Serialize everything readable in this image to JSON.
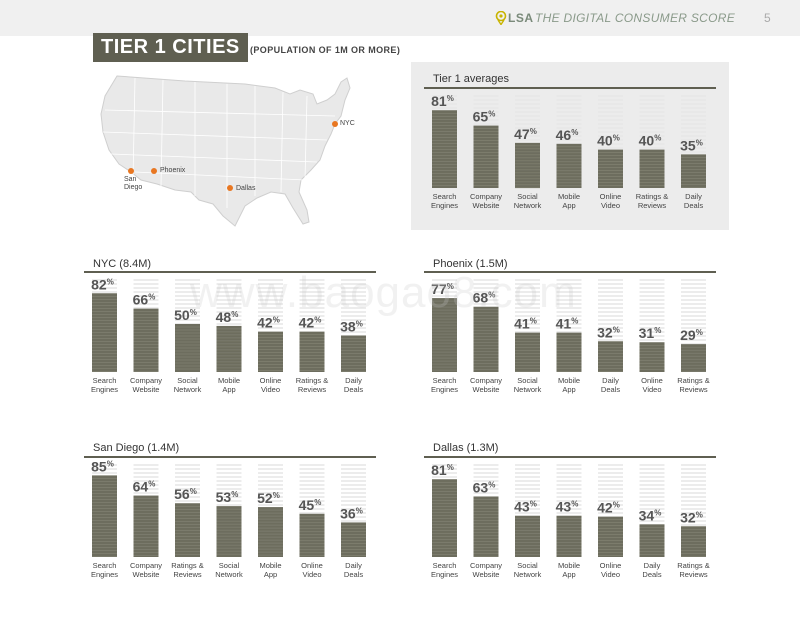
{
  "header": {
    "logo": "LSA",
    "subtitle": "THE DIGITAL CONSUMER SCORE",
    "page_number": "5"
  },
  "title": "TIER 1 CITIES",
  "title_sub": "(POPULATION OF 1M OR MORE)",
  "map": {
    "cities": [
      {
        "name": "NYC"
      },
      {
        "name": "Phoenix"
      },
      {
        "name": "San Diego"
      },
      {
        "name": "Dallas"
      }
    ],
    "marker_color": "#e87722"
  },
  "colors": {
    "bar": "#6d6d5e",
    "header_bar": "#5f5f51",
    "backdrop": "#e6e6e6"
  },
  "watermark": "www.baogao8.com",
  "percent_symbol": "%",
  "chart_data": [
    {
      "type": "bar",
      "title": "Tier 1 averages",
      "categories": [
        "Search Engines",
        "Company Website",
        "Social Network",
        "Mobile App",
        "Online Video",
        "Ratings & Reviews",
        "Daily Deals"
      ],
      "values": [
        81,
        65,
        47,
        46,
        40,
        40,
        35
      ],
      "ylim": [
        0,
        100
      ]
    },
    {
      "type": "bar",
      "title": "NYC (8.4M)",
      "categories": [
        "Search Engines",
        "Company Website",
        "Social Network",
        "Mobile App",
        "Online Video",
        "Ratings & Reviews",
        "Daily Deals"
      ],
      "values": [
        82,
        66,
        50,
        48,
        42,
        42,
        38
      ],
      "ylim": [
        0,
        100
      ]
    },
    {
      "type": "bar",
      "title": "Phoenix (1.5M)",
      "categories": [
        "Search Engines",
        "Company Website",
        "Social Network",
        "Mobile App",
        "Daily Deals",
        "Online Video",
        "Ratings & Reviews"
      ],
      "values": [
        77,
        68,
        41,
        41,
        32,
        31,
        29
      ],
      "ylim": [
        0,
        100
      ]
    },
    {
      "type": "bar",
      "title": "San Diego (1.4M)",
      "categories": [
        "Search Engines",
        "Company Website",
        "Ratings & Reviews",
        "Social Network",
        "Mobile App",
        "Online Video",
        "Daily Deals"
      ],
      "values": [
        85,
        64,
        56,
        53,
        52,
        45,
        36
      ],
      "ylim": [
        0,
        100
      ]
    },
    {
      "type": "bar",
      "title": "Dallas (1.3M)",
      "categories": [
        "Search Engines",
        "Company Website",
        "Social Network",
        "Mobile App",
        "Online Video",
        "Daily Deals",
        "Ratings & Reviews"
      ],
      "values": [
        81,
        63,
        43,
        43,
        42,
        34,
        32
      ],
      "ylim": [
        0,
        100
      ]
    }
  ]
}
